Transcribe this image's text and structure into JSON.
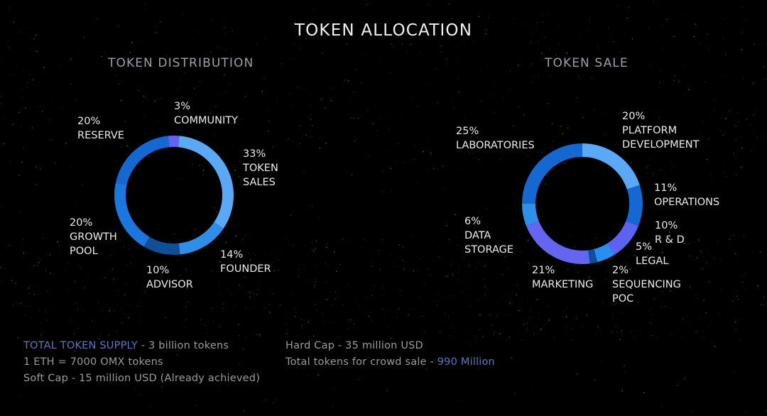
{
  "title": "TOKEN ALLOCATION",
  "colors": {
    "background": "#000000",
    "accent_text": "#5d76c4"
  },
  "chart_data": [
    {
      "type": "pie",
      "donut": true,
      "title": "TOKEN DISTRIBUTION",
      "slices": [
        {
          "percent_label": "3%",
          "name_lines": [
            "COMMUNITY"
          ],
          "value": 3,
          "color": "#6463f0"
        },
        {
          "percent_label": "33%",
          "name_lines": [
            "TOKEN",
            "SALES"
          ],
          "value": 33,
          "color": "#5aa8f6"
        },
        {
          "percent_label": "14%",
          "name_lines": [
            "FOUNDER"
          ],
          "value": 14,
          "color": "#2f8ee8"
        },
        {
          "percent_label": "10%",
          "name_lines": [
            "ADVISOR"
          ],
          "value": 10,
          "color": "#0e4f96"
        },
        {
          "percent_label": "20%",
          "name_lines": [
            "GROWTH",
            "POOL"
          ],
          "value": 20,
          "color": "#1b76de"
        },
        {
          "percent_label": "20%",
          "name_lines": [
            "RESERVE"
          ],
          "value": 20,
          "color": "#1568d2"
        }
      ]
    },
    {
      "type": "pie",
      "donut": true,
      "title": "TOKEN SALE",
      "slices": [
        {
          "percent_label": "20%",
          "name_lines": [
            "PLATFORM",
            "DEVELOPMENT"
          ],
          "value": 20,
          "color": "#5aa8f6"
        },
        {
          "percent_label": "11%",
          "name_lines": [
            "OPERATIONS"
          ],
          "value": 11,
          "color": "#1568d2"
        },
        {
          "percent_label": "10%",
          "name_lines": [
            "R & D"
          ],
          "value": 10,
          "color": "#5b63f0"
        },
        {
          "percent_label": "5%",
          "name_lines": [
            "LEGAL"
          ],
          "value": 5,
          "color": "#2a8ef0"
        },
        {
          "percent_label": "2%",
          "name_lines": [
            "SEQUENCING",
            "POC"
          ],
          "value": 2,
          "color": "#0d4f98"
        },
        {
          "percent_label": "21%",
          "name_lines": [
            "MARKETING"
          ],
          "value": 21,
          "color": "#6466f2"
        },
        {
          "percent_label": "6%",
          "name_lines": [
            "DATA",
            "STORAGE"
          ],
          "value": 6,
          "color": "#2f90ea"
        },
        {
          "percent_label": "25%",
          "name_lines": [
            "LABORATORIES"
          ],
          "value": 25,
          "color": "#1568d2"
        }
      ]
    }
  ],
  "info": {
    "total_supply_label": "TOTAL TOKEN SUPPLY",
    "total_supply_value": " - 3 billion tokens",
    "eth_rate": "1 ETH = 7000 OMX tokens",
    "soft_cap": "Soft Cap - 15 million USD (Already achieved)",
    "hard_cap": "Hard Cap - 35 million USD",
    "crowd_sale_label": "Total tokens for crowd sale - ",
    "crowd_sale_value": "990 Million"
  }
}
